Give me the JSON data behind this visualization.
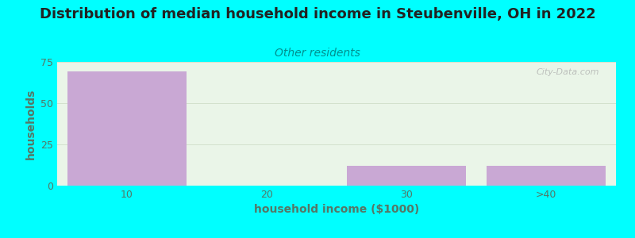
{
  "title": "Distribution of median household income in Steubenville, OH in 2022",
  "subtitle": "Other residents",
  "xlabel": "household income ($1000)",
  "ylabel": "households",
  "categories": [
    "10",
    "20",
    "30",
    ">40"
  ],
  "values": [
    69,
    0,
    12,
    12
  ],
  "bar_color": "#c9a8d4",
  "background_outer": "#00ffff",
  "background_inner_top": "#eaf5e8",
  "background_inner_bottom": "#e0f0d8",
  "ylim": [
    0,
    75
  ],
  "yticks": [
    0,
    25,
    50,
    75
  ],
  "title_fontsize": 13,
  "subtitle_fontsize": 10,
  "subtitle_color": "#009090",
  "axis_label_color": "#557766",
  "tick_color": "#557766",
  "watermark": "City-Data.com"
}
